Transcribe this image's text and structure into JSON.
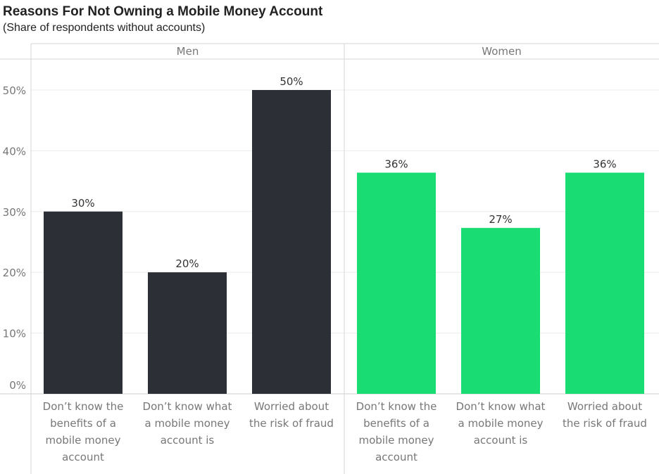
{
  "title": "Reasons For Not Owning a Mobile Money Account",
  "subtitle": "(Share of respondents without accounts)",
  "colors": {
    "men": "#2c2f36",
    "women": "#19dc72",
    "grid": "#ececec",
    "axis_text": "#777777",
    "label_text": "#333333"
  },
  "chart_data": {
    "type": "bar",
    "title": "Reasons For Not Owning a Mobile Money Account",
    "subtitle": "(Share of respondents without accounts)",
    "ylim": [
      0,
      55
    ],
    "y_ticks": [
      "0%",
      "10%",
      "20%",
      "30%",
      "40%",
      "50%"
    ],
    "grid": true,
    "panels": [
      {
        "name": "Men",
        "categories": [
          [
            "Don’t know the",
            "benefits of a",
            "mobile money",
            "account"
          ],
          [
            "Don’t know what",
            "a mobile money",
            "account is"
          ],
          [
            "Worried about",
            "the risk of fraud"
          ]
        ],
        "values": [
          30,
          20,
          50
        ],
        "labels": [
          "30%",
          "20%",
          "50%"
        ]
      },
      {
        "name": "Women",
        "categories": [
          [
            "Don’t know the",
            "benefits of a",
            "mobile money",
            "account"
          ],
          [
            "Don’t know what",
            "a mobile money",
            "account is"
          ],
          [
            "Worried about",
            "the risk of fraud"
          ]
        ],
        "values": [
          36.4,
          27.3,
          36.4
        ],
        "labels": [
          "36%",
          "27%",
          "36%"
        ]
      }
    ]
  }
}
